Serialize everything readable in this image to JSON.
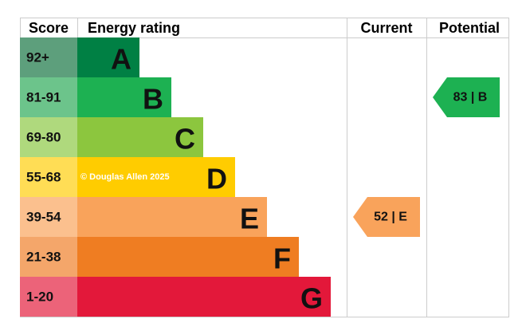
{
  "headers": {
    "score": "Score",
    "rating": "Energy rating",
    "current": "Current",
    "potential": "Potential"
  },
  "bands": [
    {
      "score": "92+",
      "letter": "A",
      "color": "#008044",
      "cell_color": "#5d9f7c"
    },
    {
      "score": "81-91",
      "letter": "B",
      "color": "#1db152",
      "cell_color": "#6cc48b"
    },
    {
      "score": "69-80",
      "letter": "C",
      "color": "#8cc63e",
      "cell_color": "#afd97d"
    },
    {
      "score": "55-68",
      "letter": "D",
      "color": "#ffcc00",
      "cell_color": "#ffdd55"
    },
    {
      "score": "39-54",
      "letter": "E",
      "color": "#f9a35b",
      "cell_color": "#fbc08e"
    },
    {
      "score": "21-38",
      "letter": "F",
      "color": "#ef7d22",
      "cell_color": "#f4a66a"
    },
    {
      "score": "1-20",
      "letter": "G",
      "color": "#e3183a",
      "cell_color": "#ec6379"
    }
  ],
  "watermark": "© Douglas Allen 2025",
  "current": {
    "label": "52 | E"
  },
  "potential": {
    "label": "83 | B"
  }
}
